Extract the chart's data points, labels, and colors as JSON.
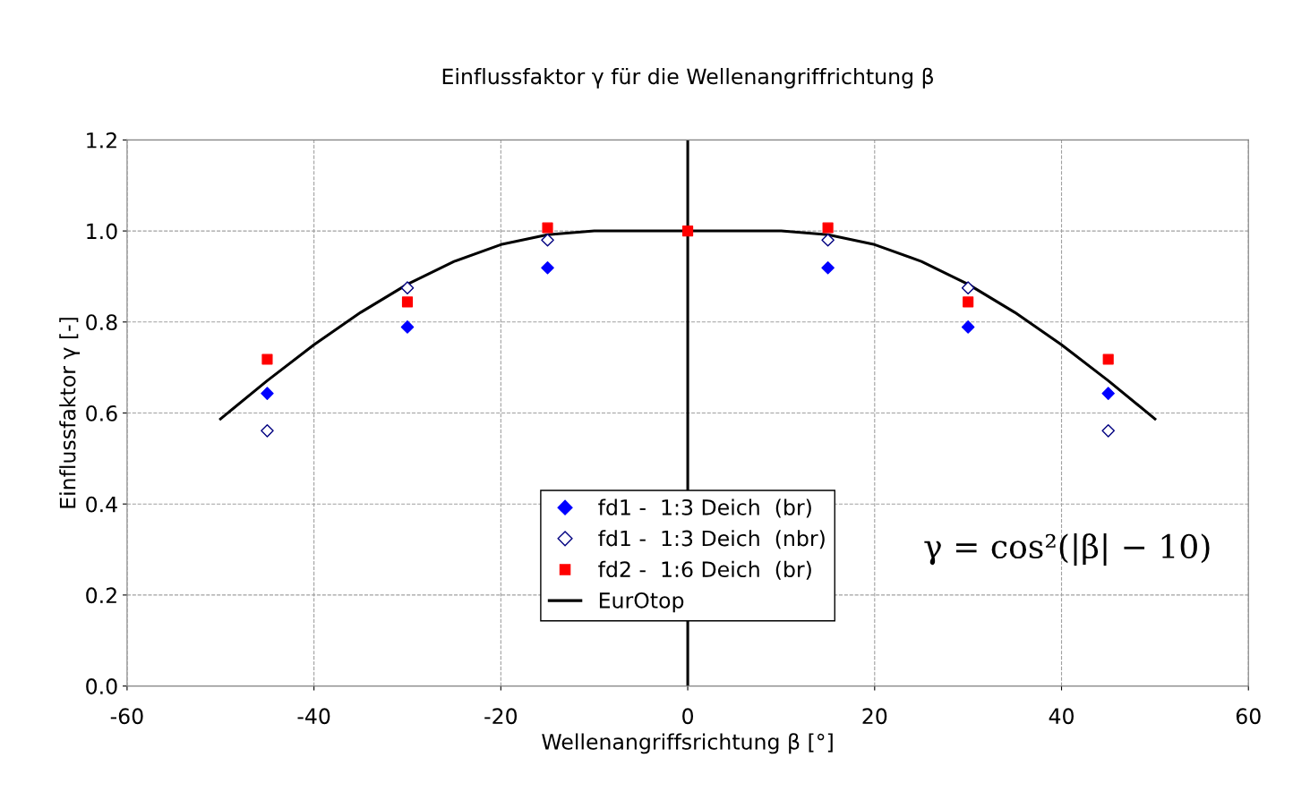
{
  "chart_data": {
    "type": "scatter",
    "title": "Einflussfaktor γ für die Wellenangriffrichtung β",
    "xlabel": "Wellenangriffsrichtung β [°]",
    "ylabel": "Einflussfaktor γ [-]",
    "x": [
      -45,
      -30,
      -15,
      0,
      15,
      30,
      45
    ],
    "series": [
      {
        "name": "fd1 -  1:3 Deich  (br)",
        "color": "#0000ff",
        "marker": "diamond",
        "values": [
          0.643,
          0.789,
          0.919,
          null,
          0.919,
          0.789,
          0.643
        ]
      },
      {
        "name": "fd1 -  1:3 Deich  (nbr)",
        "color": "#000080",
        "marker": "diamond",
        "values": [
          0.561,
          0.875,
          0.98,
          null,
          0.98,
          0.875,
          0.561
        ]
      },
      {
        "name": "fd2 -  1:6 Deich  (br)",
        "color": "#ff0000",
        "marker": "square",
        "values": [
          0.718,
          0.844,
          1.007,
          1.0,
          1.007,
          0.844,
          0.718
        ]
      },
      {
        "name": "EurOtop",
        "type": "line",
        "color": "#000000",
        "marker": "none",
        "line_style": "solid",
        "x": [
          -50,
          -45,
          -40,
          -35,
          -30,
          -25,
          -20,
          -15,
          -10,
          10,
          15,
          20,
          25,
          30,
          35,
          40,
          45,
          50
        ],
        "values": [
          0.587,
          0.671,
          0.75,
          0.821,
          0.883,
          0.933,
          0.97,
          0.992,
          1.0,
          1.0,
          0.992,
          0.97,
          0.933,
          0.883,
          0.821,
          0.75,
          0.671,
          0.587
        ]
      }
    ],
    "xlim": [
      -60,
      60
    ],
    "xticks": [
      -60,
      -40,
      -20,
      0,
      20,
      40,
      60
    ],
    "ylim": [
      0,
      1.2
    ],
    "yticks": [
      {
        "value": 0,
        "label": "0.0"
      },
      {
        "value": 0.2,
        "label": "0.2"
      },
      {
        "value": 0.4,
        "label": "0.4"
      },
      {
        "value": 0.6,
        "label": "0.6"
      },
      {
        "value": 0.8,
        "label": "0.8"
      },
      {
        "value": 1.0,
        "label": "1.0"
      },
      {
        "value": 1.2,
        "label": "1.2"
      }
    ],
    "ref_lines": [
      {
        "axis": "x",
        "value": 0,
        "color": "#000000",
        "line_style": "solid"
      }
    ],
    "annotations": [
      "γ = cos²(|β| − 10)"
    ],
    "grid": true,
    "legend": "bottom"
  }
}
